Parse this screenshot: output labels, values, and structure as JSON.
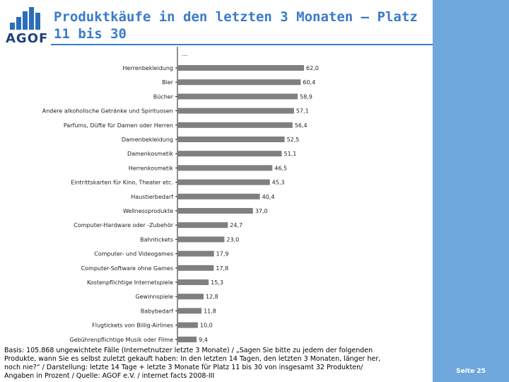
{
  "header": {
    "logo_text": "AGOF",
    "title": "Produktkäufe in den letzten 3 Monaten – Platz 11 bis 30"
  },
  "chart_data": {
    "type": "bar",
    "orientation": "horizontal",
    "top_note": "...",
    "categories": [
      "Herrenbekleidung",
      "Bier",
      "Bücher",
      "Andere alkoholische Getränke und Spirituosen",
      "Parfums, Düfte für Damen oder Herren",
      "Damenbekleidung",
      "Damenkosmetik",
      "Herrenkosmetik",
      "Eintrittskarten für Kino, Theater etc.",
      "Haustierbedarf",
      "Wellnessprodukte",
      "Computer-Hardware oder -Zubehör",
      "Bahntickets",
      "Computer- und Videogames",
      "Computer-Software ohne Games",
      "Kostenpflichtige Internetspiele",
      "Gewinnspiele",
      "Babybedarf",
      "Flugtickets von Billig-Airlines",
      "Gebührenpflichtige Musik oder Filme"
    ],
    "values": [
      62.0,
      60.4,
      58.9,
      57.1,
      56.4,
      52.5,
      51.1,
      46.5,
      45.3,
      40.4,
      37.0,
      24.7,
      23.0,
      17.9,
      17.8,
      15.3,
      12.8,
      11.8,
      10.0,
      9.4
    ],
    "value_labels": [
      "62,0",
      "60,4",
      "58,9",
      "57,1",
      "56,4",
      "52,5",
      "51,1",
      "46,5",
      "45,3",
      "40,4",
      "37,0",
      "24,7",
      "23,0",
      "17,9",
      "17,8",
      "15,3",
      "12,8",
      "11,8",
      "10,0",
      "9,4"
    ],
    "bar_color": "#808080"
  },
  "footnote": {
    "lines": [
      "Basis: 105.868 ungewichtete Fälle (Internetnutzer letzte 3 Monate) / „Sagen Sie bitte zu jedem der folgenden",
      "Produkte, wann Sie es selbst zuletzt gekauft haben: In den letzten 14 Tagen, den letzten 3 Monaten, länger her,",
      "noch nie?“ / Darstellung: letzte 14 Tage + letzte 3 Monate für Platz 11 bis 30 von insgesamt 32 Produkten/",
      "Angaben in Prozent / Quelle: AGOF e.V. / internet facts 2008-III"
    ]
  },
  "sidebar": {
    "page_label": "Seite 25",
    "color": "#6FA8DC"
  }
}
